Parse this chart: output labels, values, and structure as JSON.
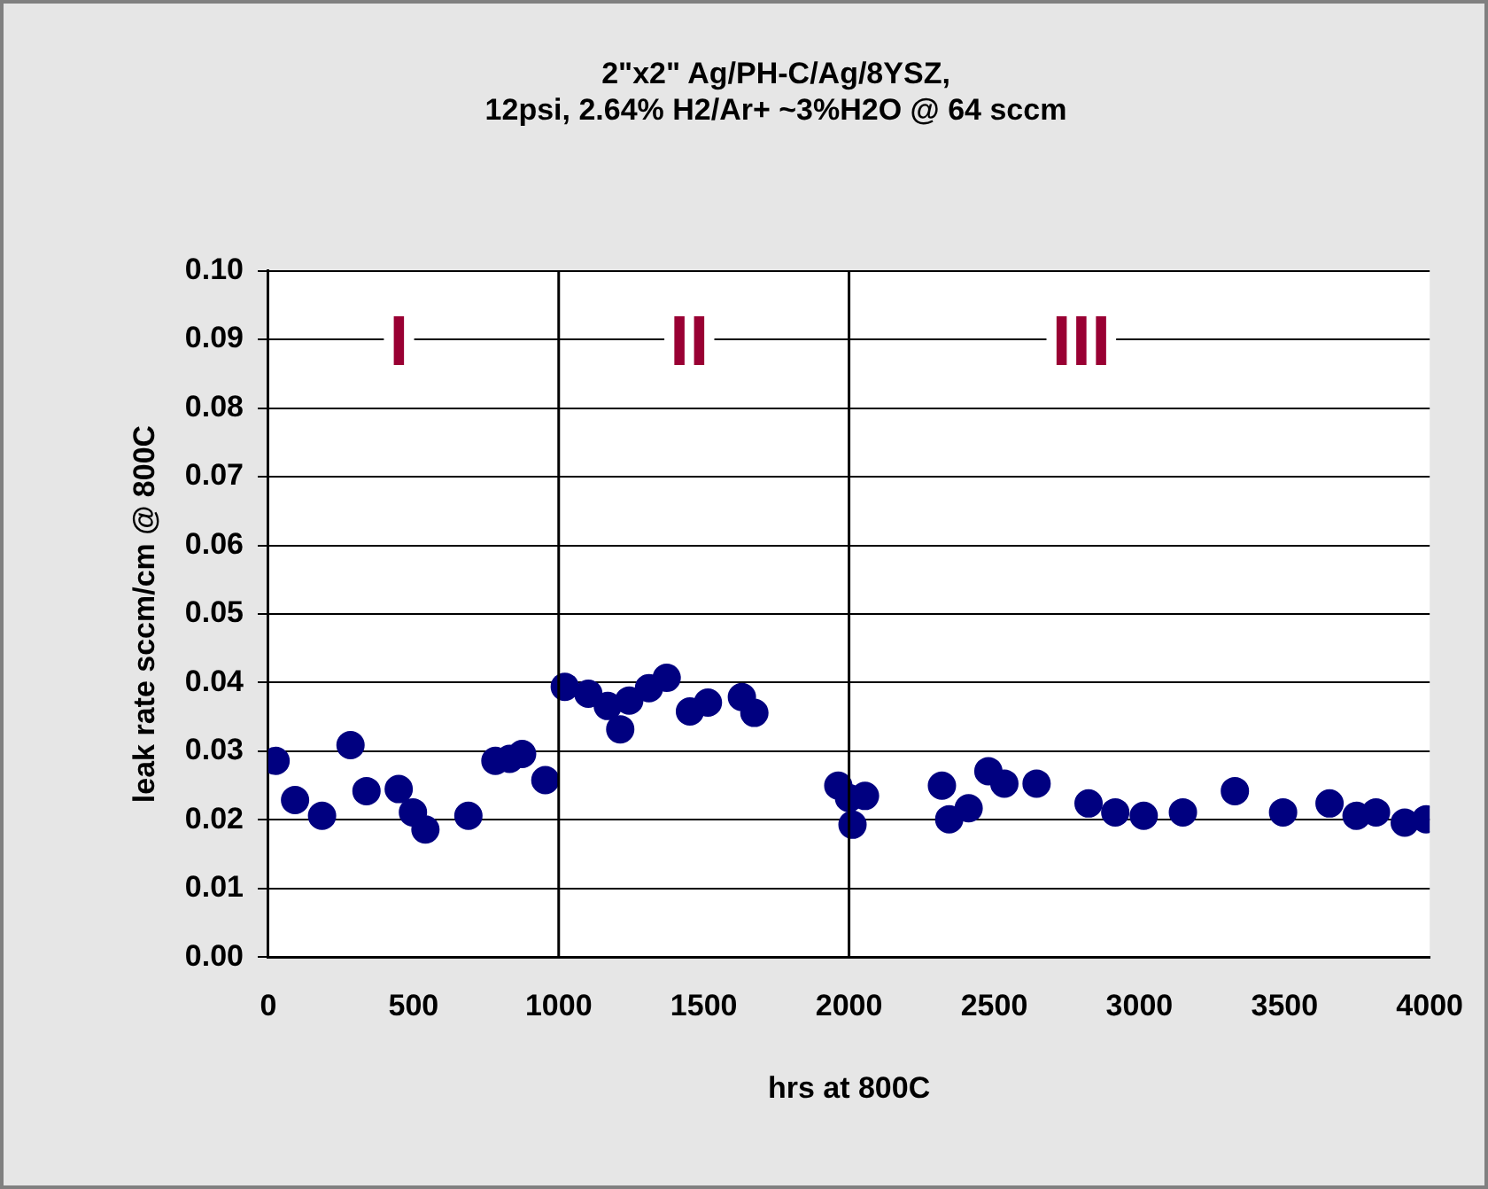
{
  "chart_data": {
    "type": "scatter",
    "title": [
      "2\"x2\" Ag/PH-C/Ag/8YSZ,",
      "12psi, 2.64% H2/Ar+ ~3%H2O @ 64 sccm"
    ],
    "xlabel": "hrs at 800C",
    "ylabel": "leak rate sccm/cm @ 800C",
    "x": [
      25,
      92,
      185,
      283,
      338,
      449,
      498,
      541,
      689,
      782,
      831,
      874,
      954,
      1021,
      1102,
      1169,
      1212,
      1243,
      1311,
      1372,
      1452,
      1514,
      1631,
      1674,
      1963,
      2000,
      2012,
      2055,
      2320,
      2345,
      2412,
      2480,
      2535,
      2646,
      2825,
      2917,
      3015,
      3150,
      3329,
      3495,
      3655,
      3748,
      3815,
      3914,
      3988
    ],
    "series": [
      {
        "color": "#000080",
        "values": [
          0.0286,
          0.0229,
          0.0206,
          0.0309,
          0.0242,
          0.0245,
          0.0211,
          0.0186,
          0.0206,
          0.0286,
          0.0289,
          0.0296,
          0.0258,
          0.0394,
          0.0384,
          0.0366,
          0.0332,
          0.0374,
          0.0392,
          0.0407,
          0.0358,
          0.0371,
          0.0379,
          0.0356,
          0.025,
          0.0232,
          0.0193,
          0.0235,
          0.025,
          0.0201,
          0.0217,
          0.0271,
          0.0253,
          0.0253,
          0.0224,
          0.0211,
          0.0206,
          0.0211,
          0.0242,
          0.0211,
          0.0224,
          0.0206,
          0.0211,
          0.0196,
          0.0201
        ]
      }
    ],
    "xlim": [
      0,
      4000
    ],
    "xticks": [
      0,
      500,
      1000,
      1500,
      2000,
      2500,
      3000,
      3500,
      4000
    ],
    "ylim": [
      0,
      0.1
    ],
    "yticks": [
      {
        "value": 0,
        "label": "0.00"
      },
      {
        "value": 0.01,
        "label": "0.01"
      },
      {
        "value": 0.02,
        "label": "0.02"
      },
      {
        "value": 0.03,
        "label": "0.03"
      },
      {
        "value": 0.04,
        "label": "0.04"
      },
      {
        "value": 0.05,
        "label": "0.05"
      },
      {
        "value": 0.06,
        "label": "0.06"
      },
      {
        "value": 0.07,
        "label": "0.07"
      },
      {
        "value": 0.08,
        "label": "0.08"
      },
      {
        "value": 0.09,
        "label": "0.09"
      },
      {
        "value": 0.1,
        "label": "0.10"
      }
    ],
    "ref_lines": [
      {
        "axis": "x",
        "value": 1000,
        "color": "#000000"
      },
      {
        "axis": "x",
        "value": 2000,
        "color": "#000000"
      }
    ],
    "annotations": [
      "I",
      "II",
      "III"
    ],
    "grid": "y",
    "legend": false,
    "marker": "circle"
  }
}
